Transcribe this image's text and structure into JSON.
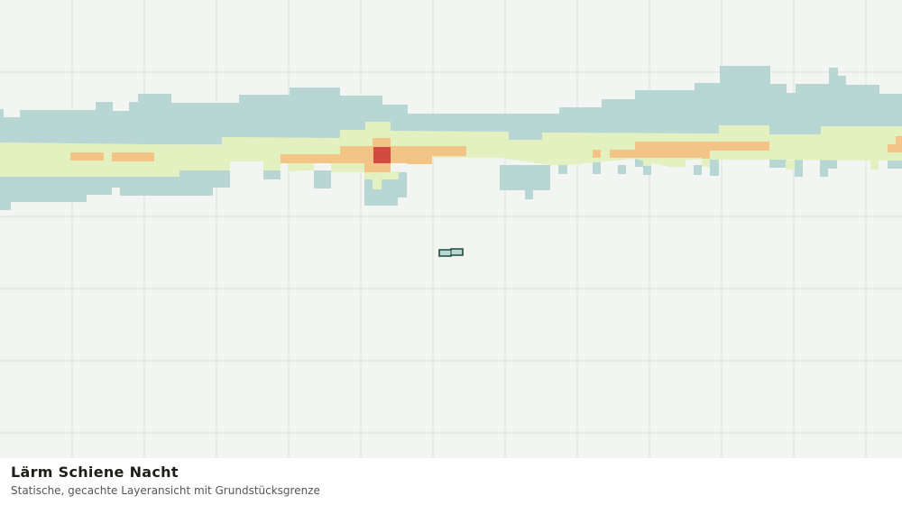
{
  "caption": {
    "title": "Lärm Schiene Nacht",
    "subtitle": "Statische, gecachte Layeransicht mit Grundstücksgrenze"
  },
  "legend_colors": {
    "background": "#f3f5f2",
    "grid": "#dcdfdb",
    "noise_low": "#b8d6d3",
    "noise_mid": "#e3f1c1",
    "noise_high": "#f2c486",
    "noise_peak": "#d24a40",
    "parcel_fill": "#b8d6d3",
    "parcel_border": "#1f4d3a"
  },
  "map": {
    "layer": "noise-rail-night",
    "features": [
      "noise-band-low",
      "noise-band-mid",
      "noise-band-high",
      "noise-hotspot",
      "parcel-boundary"
    ]
  }
}
